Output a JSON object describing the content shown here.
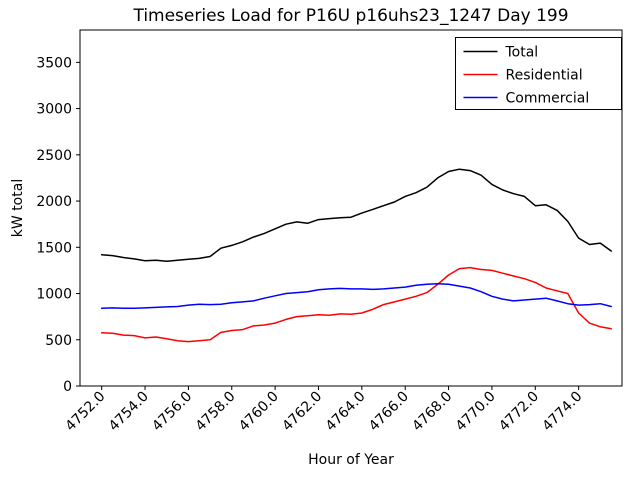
{
  "figure": {
    "background": "#ffffff",
    "axes_edge_color": "#000000",
    "legend_edge_color": "#000000",
    "legend_background": "#ffffff"
  },
  "chart_data": {
    "type": "line",
    "title": "Timeseries Load for P16U p16uhs23_1247  Day 199",
    "xlabel": "Hour of Year",
    "ylabel": "kW total",
    "xlim": [
      4751.0,
      4776.0
    ],
    "ylim": [
      0,
      3850
    ],
    "grid": false,
    "legend_position": "upper right",
    "yticks": [
      0,
      500,
      1000,
      1500,
      2000,
      2500,
      3000,
      3500
    ],
    "ytick_labels": [
      "0",
      "500",
      "1000",
      "1500",
      "2000",
      "2500",
      "3000",
      "3500"
    ],
    "xticks": [
      4752,
      4754,
      4756,
      4758,
      4760,
      4762,
      4764,
      4766,
      4768,
      4770,
      4772,
      4774
    ],
    "xtick_labels": [
      "4752.0",
      "4754.0",
      "4756.0",
      "4758.0",
      "4760.0",
      "4762.0",
      "4764.0",
      "4766.0",
      "4768.0",
      "4770.0",
      "4772.0",
      "4774.0"
    ],
    "x": [
      4752.0,
      4752.5,
      4753.0,
      4753.5,
      4754.0,
      4754.5,
      4755.0,
      4755.5,
      4756.0,
      4756.5,
      4757.0,
      4757.5,
      4758.0,
      4758.5,
      4759.0,
      4759.5,
      4760.0,
      4760.5,
      4761.0,
      4761.5,
      4762.0,
      4762.5,
      4763.0,
      4763.5,
      4764.0,
      4764.5,
      4765.0,
      4765.5,
      4766.0,
      4766.5,
      4767.0,
      4767.5,
      4768.0,
      4768.5,
      4769.0,
      4769.5,
      4770.0,
      4770.5,
      4771.0,
      4771.5,
      4772.0,
      4772.5,
      4773.0,
      4773.5,
      4774.0,
      4774.5,
      4775.0,
      4775.5
    ],
    "series": [
      {
        "name": "Total",
        "color": "#000000",
        "values": [
          1420,
          1410,
          1390,
          1375,
          1355,
          1360,
          1350,
          1360,
          1370,
          1380,
          1400,
          1490,
          1520,
          1560,
          1610,
          1650,
          1700,
          1750,
          1775,
          1760,
          1800,
          1810,
          1820,
          1825,
          1870,
          1910,
          1950,
          1990,
          2050,
          2090,
          2150,
          2250,
          2320,
          2345,
          2330,
          2280,
          2180,
          2120,
          2080,
          2050,
          1950,
          1960,
          1900,
          1780,
          1600,
          1530,
          1545,
          1460
        ]
      },
      {
        "name": "Residential",
        "color": "#ff0000",
        "values": [
          575,
          570,
          550,
          545,
          520,
          530,
          510,
          490,
          480,
          490,
          500,
          580,
          600,
          610,
          650,
          660,
          680,
          720,
          750,
          760,
          770,
          765,
          780,
          775,
          790,
          830,
          880,
          910,
          940,
          970,
          1010,
          1100,
          1200,
          1270,
          1280,
          1260,
          1250,
          1220,
          1190,
          1160,
          1120,
          1060,
          1030,
          1000,
          790,
          680,
          640,
          620
        ]
      },
      {
        "name": "Commercial",
        "color": "#0000ff",
        "values": [
          840,
          845,
          840,
          840,
          845,
          850,
          855,
          860,
          875,
          885,
          880,
          885,
          900,
          910,
          920,
          950,
          975,
          1000,
          1010,
          1020,
          1040,
          1050,
          1055,
          1050,
          1050,
          1045,
          1050,
          1060,
          1070,
          1090,
          1100,
          1105,
          1100,
          1080,
          1060,
          1020,
          970,
          940,
          920,
          930,
          940,
          950,
          920,
          890,
          875,
          880,
          890,
          860
        ]
      }
    ]
  }
}
